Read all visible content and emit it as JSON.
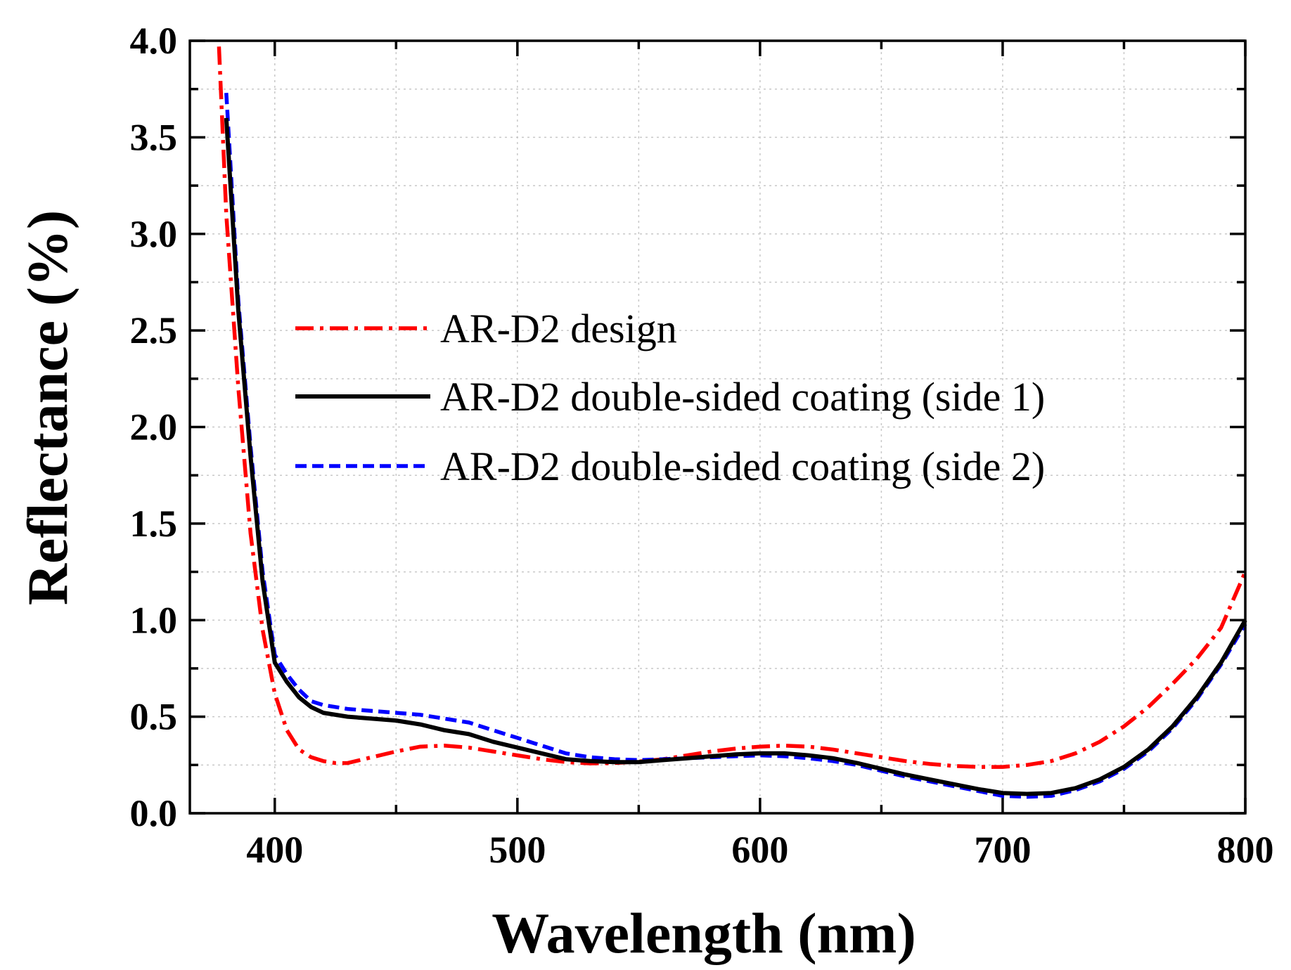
{
  "chart_data": {
    "type": "line",
    "title": "",
    "xlabel": "Wavelength (nm)",
    "ylabel": "Reflectance (%)",
    "xlim": [
      365,
      800
    ],
    "ylim": [
      0,
      4.0
    ],
    "xticks": [
      400,
      500,
      600,
      700,
      800
    ],
    "xtick_labels": [
      "400",
      "500",
      "600",
      "700",
      "800"
    ],
    "yticks": [
      0,
      0.5,
      1.0,
      1.5,
      2.0,
      2.5,
      3.0,
      3.5,
      4.0
    ],
    "ytick_labels": [
      "0.0",
      "0.5",
      "1.0",
      "1.5",
      "2.0",
      "2.5",
      "3.0",
      "3.5",
      "4.0"
    ],
    "grid": true,
    "legend_position": "center-right",
    "series": [
      {
        "name": "AR-D2 design",
        "color": "#ff0000",
        "style": "dash-dot",
        "x": [
          377,
          380,
          385,
          390,
          395,
          400,
          405,
          410,
          415,
          420,
          425,
          430,
          440,
          450,
          460,
          470,
          480,
          490,
          500,
          510,
          520,
          530,
          540,
          550,
          560,
          570,
          580,
          590,
          600,
          610,
          620,
          630,
          640,
          650,
          660,
          670,
          680,
          690,
          700,
          710,
          720,
          730,
          740,
          750,
          760,
          770,
          780,
          790,
          800
        ],
        "y": [
          3.97,
          3.1,
          2.2,
          1.45,
          0.95,
          0.62,
          0.43,
          0.33,
          0.29,
          0.27,
          0.26,
          0.26,
          0.29,
          0.32,
          0.345,
          0.35,
          0.34,
          0.32,
          0.3,
          0.28,
          0.265,
          0.258,
          0.26,
          0.268,
          0.28,
          0.3,
          0.32,
          0.335,
          0.345,
          0.35,
          0.345,
          0.33,
          0.31,
          0.29,
          0.27,
          0.255,
          0.245,
          0.24,
          0.24,
          0.25,
          0.27,
          0.31,
          0.37,
          0.45,
          0.55,
          0.67,
          0.8,
          0.96,
          1.25
        ]
      },
      {
        "name": "AR-D2 double-sided coating (side 1)",
        "color": "#000000",
        "style": "solid",
        "x": [
          380,
          382,
          385,
          390,
          395,
          400,
          405,
          410,
          415,
          420,
          430,
          440,
          450,
          460,
          470,
          480,
          490,
          500,
          510,
          520,
          530,
          540,
          550,
          560,
          570,
          580,
          590,
          600,
          610,
          620,
          630,
          640,
          650,
          660,
          670,
          680,
          690,
          700,
          710,
          720,
          730,
          740,
          750,
          760,
          770,
          780,
          790,
          800
        ],
        "y": [
          3.6,
          3.2,
          2.6,
          1.85,
          1.2,
          0.78,
          0.68,
          0.6,
          0.55,
          0.52,
          0.5,
          0.49,
          0.48,
          0.46,
          0.43,
          0.41,
          0.37,
          0.34,
          0.31,
          0.28,
          0.27,
          0.265,
          0.265,
          0.275,
          0.285,
          0.295,
          0.305,
          0.31,
          0.31,
          0.3,
          0.285,
          0.26,
          0.23,
          0.2,
          0.175,
          0.15,
          0.125,
          0.105,
          0.1,
          0.105,
          0.13,
          0.175,
          0.24,
          0.33,
          0.45,
          0.6,
          0.78,
          1.0
        ]
      },
      {
        "name": "AR-D2 double-sided coating (side 2)",
        "color": "#0000ff",
        "style": "dashed",
        "x": [
          380,
          382,
          385,
          390,
          395,
          400,
          405,
          410,
          415,
          420,
          430,
          440,
          450,
          460,
          470,
          480,
          490,
          500,
          510,
          520,
          530,
          540,
          550,
          560,
          570,
          580,
          590,
          600,
          610,
          620,
          630,
          640,
          650,
          660,
          670,
          680,
          690,
          700,
          710,
          720,
          730,
          740,
          750,
          760,
          770,
          780,
          790,
          800
        ],
        "y": [
          3.73,
          3.3,
          2.65,
          1.9,
          1.25,
          0.82,
          0.72,
          0.64,
          0.58,
          0.56,
          0.54,
          0.53,
          0.52,
          0.51,
          0.49,
          0.47,
          0.43,
          0.39,
          0.35,
          0.31,
          0.29,
          0.28,
          0.275,
          0.28,
          0.285,
          0.29,
          0.295,
          0.3,
          0.295,
          0.285,
          0.27,
          0.25,
          0.22,
          0.19,
          0.165,
          0.14,
          0.115,
          0.09,
          0.085,
          0.09,
          0.12,
          0.165,
          0.23,
          0.32,
          0.44,
          0.59,
          0.77,
          0.98
        ]
      }
    ]
  }
}
